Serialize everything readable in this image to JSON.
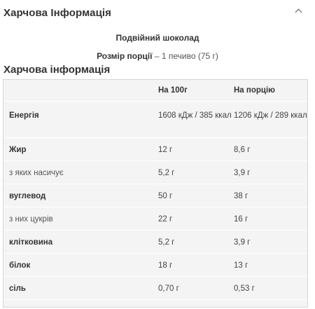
{
  "accordion": {
    "title": "Харчова Інформація",
    "icon": "chevron-up-icon"
  },
  "product": {
    "flavour": "Подвійний шоколад",
    "serving_label": "Розмір порції",
    "serving_value": " – 1 печиво (75 г)"
  },
  "nutrition": {
    "title": "Харчова інформація",
    "columns": [
      "",
      "На 100г",
      "На порцію"
    ],
    "rows": [
      {
        "label": "Енергія",
        "per100": "1608 кДж / 385 ккал",
        "serving": "1206 кДж / 289 ккал",
        "bold": true
      },
      {
        "label": "Жир",
        "per100": "12 г",
        "serving": "8,6 г",
        "bold": true
      },
      {
        "label": "з яких насичує",
        "per100": "5,2 г",
        "serving": "3,9 г",
        "bold": false
      },
      {
        "label": "вуглевод",
        "per100": "50 г",
        "serving": "38 г",
        "bold": true
      },
      {
        "label": "з них цукрів",
        "per100": "22 г",
        "serving": "16 г",
        "bold": false
      },
      {
        "label": "клітковина",
        "per100": "5,2 г",
        "serving": "3,9 г",
        "bold": true
      },
      {
        "label": "білок",
        "per100": "18 г",
        "serving": "13 г",
        "bold": true
      },
      {
        "label": "сіль",
        "per100": "0,70 г",
        "serving": "0,53 г",
        "bold": true
      }
    ]
  }
}
